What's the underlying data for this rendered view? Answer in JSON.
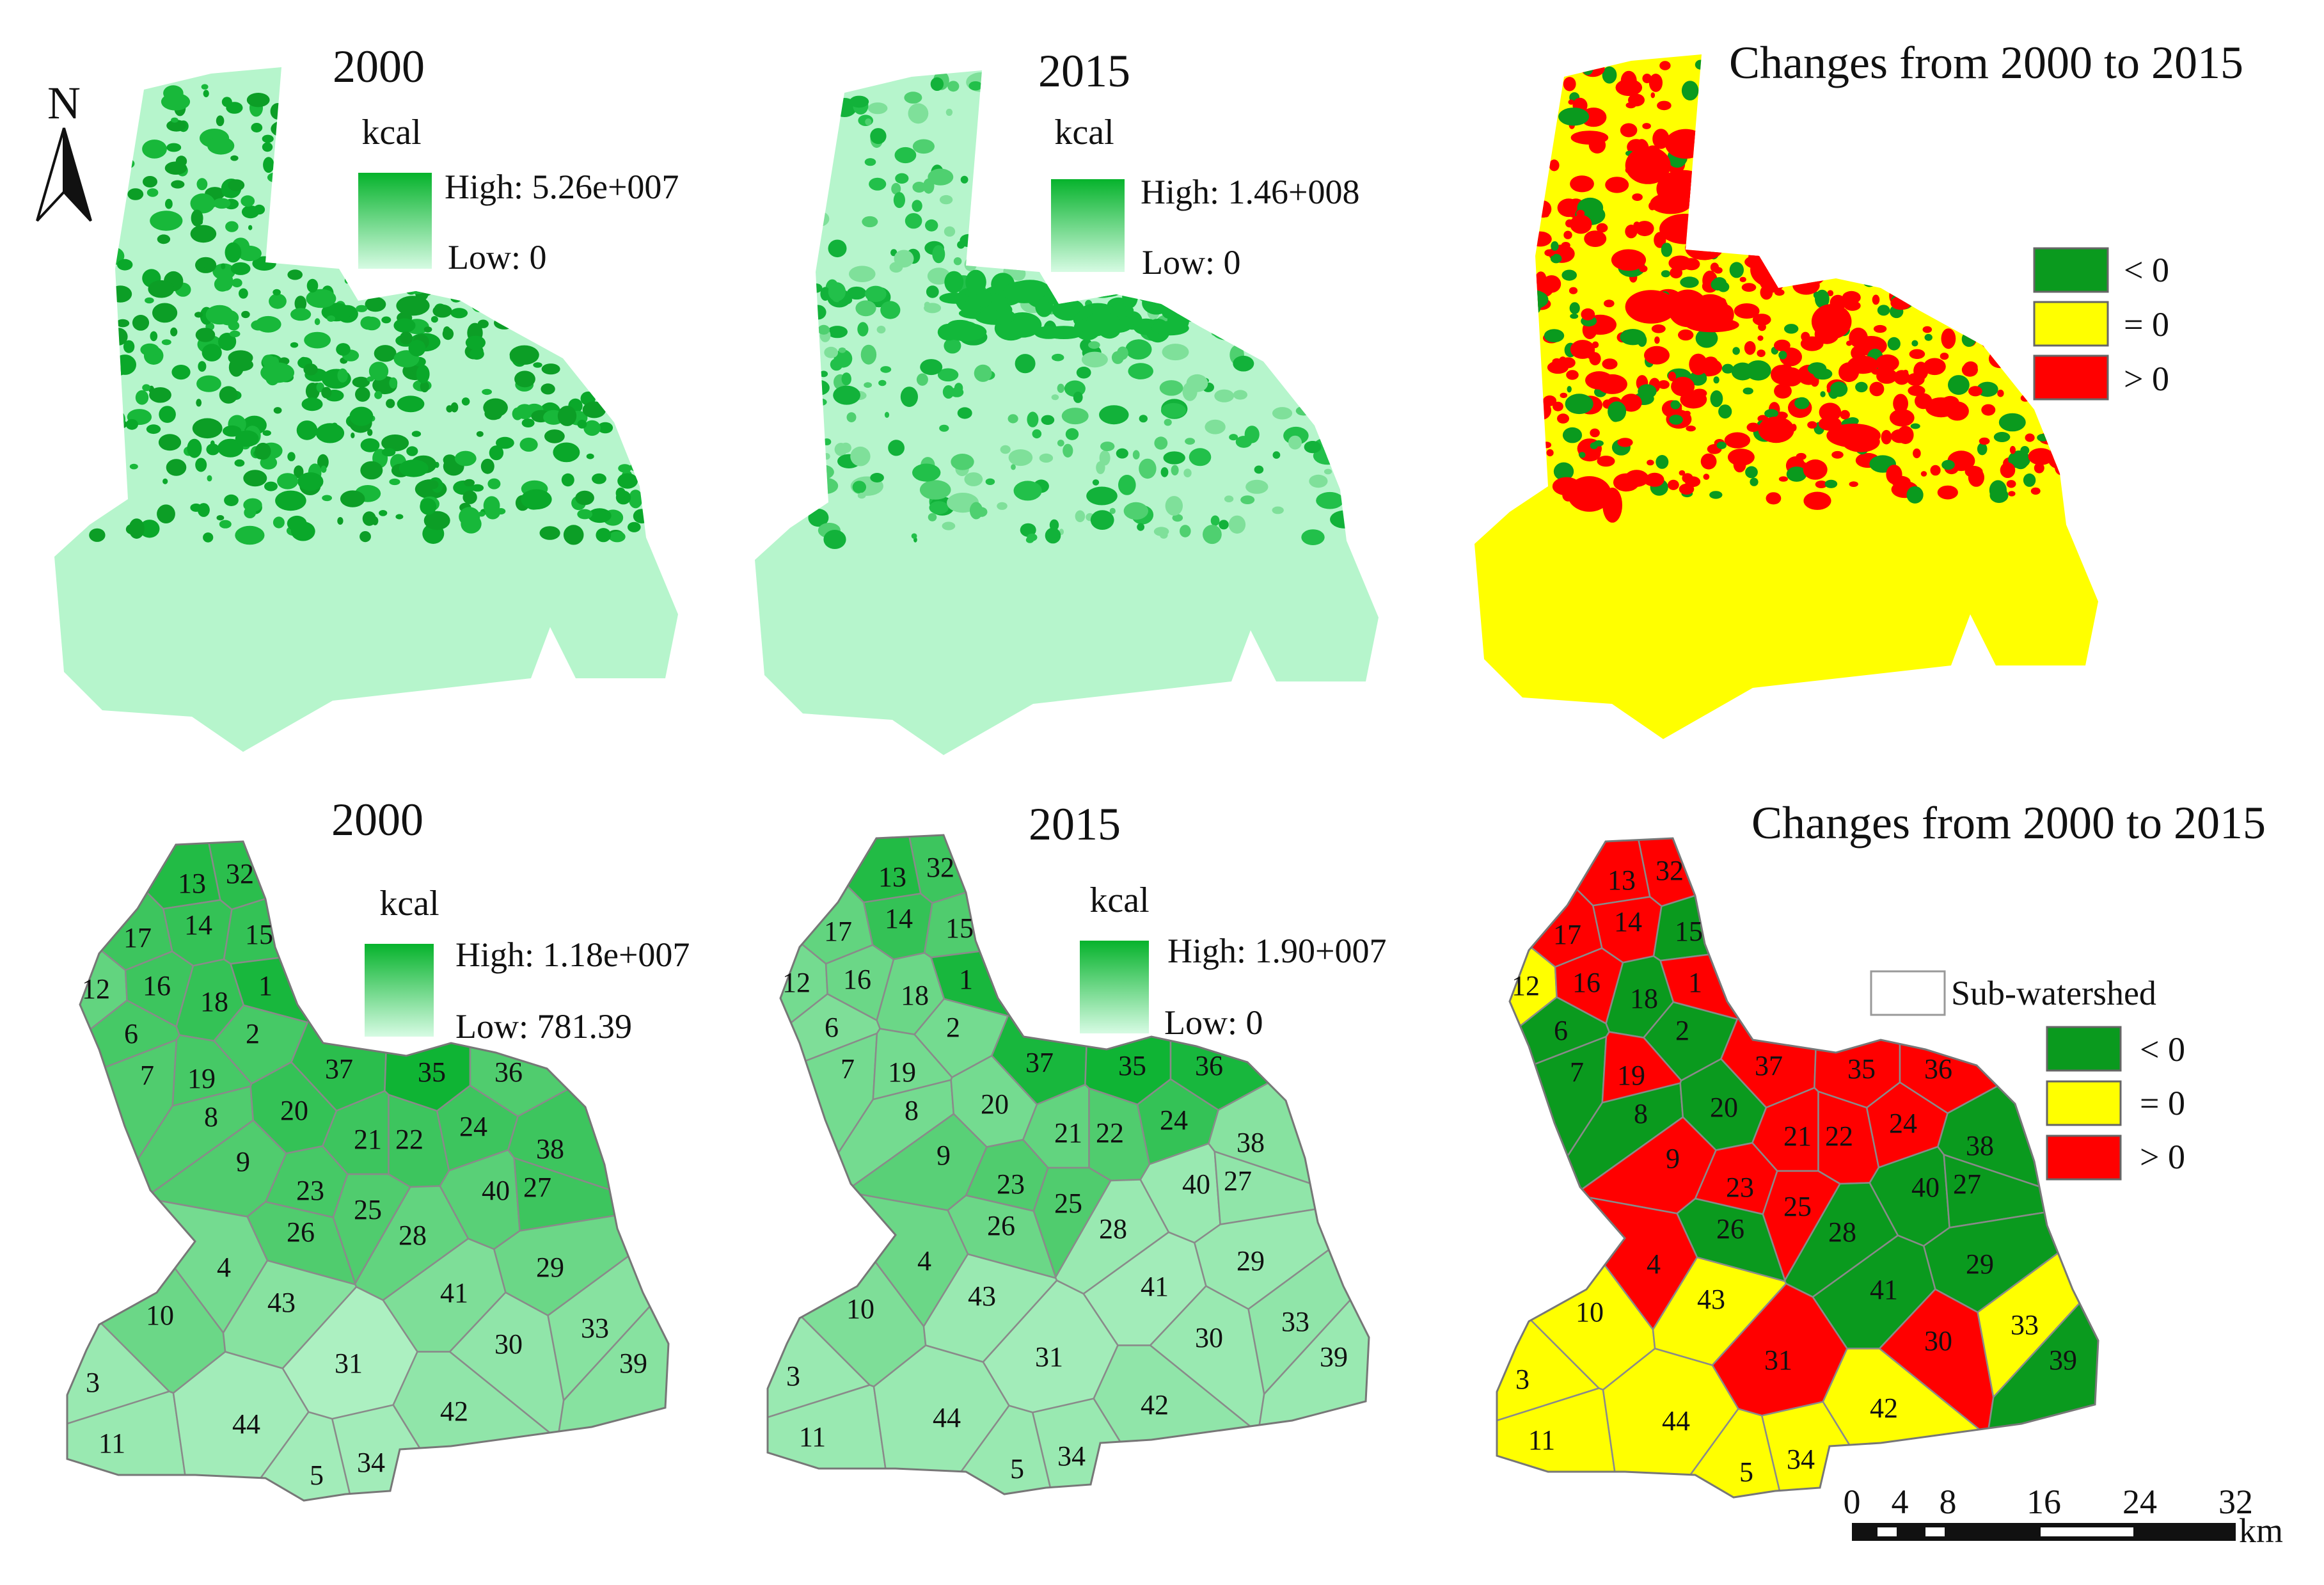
{
  "north_arrow": {
    "label": "N"
  },
  "top_row": {
    "panel_2000": {
      "title": "2000",
      "unit": "kcal",
      "legend_high": "High: 5.26e+007",
      "legend_low": "Low: 0"
    },
    "panel_2015": {
      "title": "2015",
      "unit": "kcal",
      "legend_high": "High: 1.46+008",
      "legend_low": "Low: 0"
    },
    "panel_change": {
      "title": "Changes from 2000 to 2015",
      "legend": [
        {
          "label": "< 0",
          "color": "#0a9a1e"
        },
        {
          "label": "= 0",
          "color": "#ffff00"
        },
        {
          "label": "> 0",
          "color": "#ff0000"
        }
      ]
    }
  },
  "bottom_row": {
    "panel_2000": {
      "title": "2000",
      "unit": "kcal",
      "legend_high": "High: 1.18e+007",
      "legend_low": "Low: 781.39"
    },
    "panel_2015": {
      "title": "2015",
      "unit": "kcal",
      "legend_high": "High: 1.90+007",
      "legend_low": "Low: 0"
    },
    "panel_change": {
      "title": "Changes from 2000 to 2015",
      "boundary_label": "Sub-watershed",
      "legend": [
        {
          "label": "< 0",
          "color": "#0a9a1e"
        },
        {
          "label": "= 0",
          "color": "#ffff00"
        },
        {
          "label": "> 0",
          "color": "#ff0000"
        }
      ]
    }
  },
  "scale_bar": {
    "ticks": [
      "0",
      "4",
      "8",
      "16",
      "24",
      "32"
    ],
    "unit": "km"
  },
  "colors": {
    "green_high": "#06b32c",
    "green_low": "#b6f5cc",
    "yellow": "#ffff00",
    "red": "#ff0000",
    "dark_green": "#0a9a1e"
  },
  "subwatersheds": {
    "ids": [
      "13",
      "32",
      "14",
      "15",
      "17",
      "1",
      "12",
      "16",
      "18",
      "6",
      "2",
      "7",
      "19",
      "37",
      "35",
      "36",
      "8",
      "20",
      "21",
      "22",
      "24",
      "38",
      "9",
      "23",
      "25",
      "40",
      "27",
      "26",
      "28",
      "29",
      "4",
      "41",
      "10",
      "43",
      "30",
      "33",
      "31",
      "39",
      "3",
      "42",
      "11",
      "44",
      "34",
      "5"
    ],
    "shade_2000": {
      "13": 0.85,
      "32": 0.8,
      "14": 0.75,
      "15": 0.75,
      "17": 0.7,
      "1": 0.9,
      "12": 0.5,
      "16": 0.7,
      "18": 0.75,
      "6": 0.65,
      "2": 0.65,
      "7": 0.6,
      "19": 0.65,
      "37": 0.8,
      "35": 0.95,
      "36": 0.6,
      "8": 0.6,
      "20": 0.75,
      "21": 0.7,
      "22": 0.7,
      "24": 0.7,
      "38": 0.7,
      "9": 0.6,
      "23": 0.65,
      "25": 0.6,
      "40": 0.55,
      "27": 0.7,
      "26": 0.6,
      "28": 0.5,
      "29": 0.45,
      "4": 0.4,
      "41": 0.35,
      "10": 0.45,
      "43": 0.3,
      "30": 0.25,
      "33": 0.3,
      "31": 0.1,
      "39": 0.3,
      "3": 0.2,
      "42": 0.25,
      "11": 0.2,
      "44": 0.15,
      "34": 0.15,
      "5": 0.15
    },
    "shade_2015": {
      "13": 0.85,
      "32": 0.7,
      "14": 0.75,
      "15": 0.6,
      "17": 0.5,
      "1": 0.9,
      "12": 0.4,
      "16": 0.45,
      "18": 0.45,
      "6": 0.35,
      "2": 0.4,
      "7": 0.4,
      "19": 0.4,
      "37": 0.9,
      "35": 0.95,
      "36": 0.9,
      "8": 0.4,
      "20": 0.4,
      "21": 0.5,
      "22": 0.6,
      "24": 0.75,
      "38": 0.3,
      "9": 0.55,
      "23": 0.6,
      "25": 0.6,
      "40": 0.2,
      "27": 0.25,
      "26": 0.45,
      "28": 0.2,
      "29": 0.2,
      "4": 0.45,
      "41": 0.15,
      "10": 0.35,
      "43": 0.2,
      "30": 0.2,
      "33": 0.25,
      "31": 0.15,
      "39": 0.2,
      "3": 0.2,
      "42": 0.25,
      "11": 0.2,
      "44": 0.2,
      "34": 0.2,
      "5": 0.2
    },
    "change_class": {
      "13": "gt",
      "32": "gt",
      "14": "gt",
      "15": "lt",
      "17": "gt",
      "1": "gt",
      "12": "eq",
      "16": "gt",
      "18": "lt",
      "6": "lt",
      "2": "lt",
      "7": "lt",
      "19": "gt",
      "37": "gt",
      "35": "gt",
      "36": "gt",
      "8": "lt",
      "20": "lt",
      "21": "gt",
      "22": "gt",
      "24": "gt",
      "38": "lt",
      "9": "gt",
      "23": "gt",
      "25": "gt",
      "40": "lt",
      "27": "lt",
      "26": "lt",
      "28": "lt",
      "29": "lt",
      "4": "gt",
      "41": "lt",
      "10": "eq",
      "43": "eq",
      "30": "gt",
      "33": "eq",
      "31": "gt",
      "39": "lt",
      "3": "eq",
      "42": "eq",
      "11": "eq",
      "44": "eq",
      "34": "eq",
      "5": "eq"
    }
  }
}
